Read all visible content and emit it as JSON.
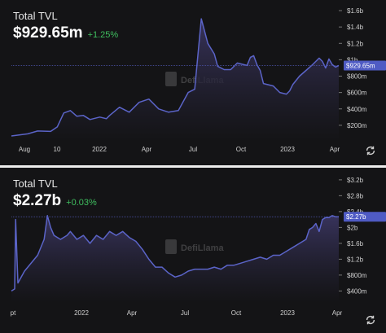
{
  "charts": [
    {
      "id": "tvl1",
      "title": "Total TVL",
      "value": "$929.65m",
      "change": "+1.25%",
      "last_value_label": "$929.65m",
      "watermark": "DefiLlama"
    },
    {
      "id": "tvl2",
      "title": "Total TVL",
      "value": "$2.27b",
      "change": "+0.03%",
      "last_value_label": "$2.27b",
      "watermark": "DefiLlama"
    }
  ],
  "colors": {
    "background": "#141416",
    "line": "#5b64c8",
    "fill_top": "#3a3560",
    "positive": "#3fbf5f",
    "axis_text": "#d0d0d0",
    "price_line": "#4e56b0",
    "label_bg": "#4f5bc4"
  },
  "icons": {
    "refresh": "refresh-icon",
    "logo": "defillama-logo"
  },
  "chart_data": [
    {
      "type": "area",
      "title": "Total TVL",
      "y_unit": "USD",
      "x_ticks": [
        "Aug",
        "10",
        "2022",
        "Apr",
        "Jul",
        "Oct",
        "2023",
        "Apr"
      ],
      "y_ticks": [
        "$200m",
        "$400m",
        "$600m",
        "$800m",
        "$1b",
        "$1.2b",
        "$1.4b",
        "$1.6b"
      ],
      "y_tick_values": [
        200,
        400,
        600,
        800,
        1000,
        1200,
        1400,
        1600
      ],
      "ylim": [
        0,
        1650
      ],
      "x_range": [
        0,
        100
      ],
      "last_value": 929.65,
      "series": [
        {
          "x": [
            0,
            5,
            8,
            12,
            14,
            16,
            18,
            20,
            22,
            24,
            27,
            29,
            30,
            33,
            36,
            39,
            42,
            45,
            48,
            51,
            54,
            56,
            58,
            60,
            62,
            63,
            65,
            67,
            69,
            71,
            72,
            73,
            74,
            75,
            76,
            77,
            78,
            80,
            82,
            84,
            85,
            86,
            88,
            90,
            92,
            94,
            95,
            96,
            97,
            98,
            99,
            100
          ],
          "y": [
            70,
            95,
            130,
            125,
            180,
            350,
            380,
            310,
            320,
            270,
            300,
            280,
            320,
            420,
            360,
            480,
            520,
            400,
            360,
            380,
            600,
            640,
            1500,
            1200,
            1070,
            920,
            880,
            880,
            960,
            940,
            930,
            1030,
            1050,
            940,
            870,
            710,
            700,
            680,
            600,
            580,
            620,
            700,
            800,
            870,
            940,
            1020,
            980,
            900,
            1010,
            940,
            910,
            930
          ]
        }
      ]
    },
    {
      "type": "area",
      "title": "Total TVL",
      "y_unit": "USD",
      "x_ticks": [
        "pt",
        "2022",
        "Apr",
        "Jul",
        "Oct",
        "2023",
        "Apr"
      ],
      "y_ticks": [
        "$400m",
        "$800m",
        "$1.2b",
        "$1.6b",
        "$2b",
        "$2.4b",
        "$2.8b",
        "$3.2b"
      ],
      "y_tick_values": [
        0.4,
        0.8,
        1.2,
        1.6,
        2.0,
        2.4,
        2.8,
        3.2
      ],
      "ylim": [
        0.1,
        3.3
      ],
      "x_range": [
        0,
        100
      ],
      "last_value": 2.27,
      "series": [
        {
          "x": [
            0,
            1,
            1.3,
            2,
            4,
            8,
            10,
            11,
            12,
            13,
            15,
            17,
            18,
            20,
            22,
            24,
            26,
            28,
            30,
            32,
            34,
            36,
            38,
            40,
            42,
            44,
            46,
            48,
            50,
            52,
            54,
            56,
            58,
            60,
            62,
            64,
            66,
            68,
            70,
            72,
            74,
            76,
            78,
            80,
            82,
            84,
            86,
            88,
            90,
            91,
            92,
            93,
            94,
            95,
            96,
            97,
            98,
            99,
            100
          ],
          "y": [
            0.4,
            0.45,
            2.2,
            0.6,
            0.9,
            1.3,
            1.7,
            2.3,
            2.0,
            1.8,
            1.7,
            1.8,
            1.9,
            1.7,
            1.8,
            1.6,
            1.8,
            1.7,
            1.9,
            1.8,
            1.9,
            1.75,
            1.65,
            1.45,
            1.2,
            1.0,
            1.0,
            0.85,
            0.75,
            0.8,
            0.9,
            0.95,
            0.95,
            0.95,
            1.0,
            0.95,
            1.05,
            1.05,
            1.1,
            1.15,
            1.2,
            1.25,
            1.2,
            1.3,
            1.3,
            1.4,
            1.5,
            1.6,
            1.7,
            1.95,
            2.0,
            2.1,
            1.9,
            2.2,
            2.25,
            2.25,
            2.3,
            2.27,
            2.27
          ]
        }
      ]
    }
  ]
}
